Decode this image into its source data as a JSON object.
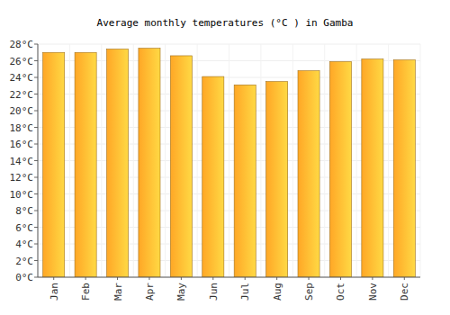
{
  "chart_data": {
    "type": "bar",
    "title": "Average monthly temperatures (°C ) in Gamba",
    "categories": [
      "Jan",
      "Feb",
      "Mar",
      "Apr",
      "May",
      "Jun",
      "Jul",
      "Aug",
      "Sep",
      "Oct",
      "Nov",
      "Dec"
    ],
    "values": [
      27.0,
      27.0,
      27.4,
      27.5,
      26.6,
      24.1,
      23.1,
      23.5,
      24.8,
      25.9,
      26.2,
      26.1
    ],
    "color": "#ffa726",
    "ylim": [
      0,
      28
    ],
    "yticks": [
      {
        "value": 0,
        "label": "0°C"
      },
      {
        "value": 2,
        "label": "2°C"
      },
      {
        "value": 4,
        "label": "4°C"
      },
      {
        "value": 6,
        "label": "6°C"
      },
      {
        "value": 8,
        "label": "8°C"
      },
      {
        "value": 10,
        "label": "10°C"
      },
      {
        "value": 12,
        "label": "12°C"
      },
      {
        "value": 14,
        "label": "14°C"
      },
      {
        "value": 16,
        "label": "16°C"
      },
      {
        "value": 18,
        "label": "18°C"
      },
      {
        "value": 20,
        "label": "20°C"
      },
      {
        "value": 22,
        "label": "22°C"
      },
      {
        "value": 24,
        "label": "24°C"
      },
      {
        "value": 26,
        "label": "26°C"
      },
      {
        "value": 28,
        "label": "28°C"
      }
    ],
    "grid": true
  }
}
